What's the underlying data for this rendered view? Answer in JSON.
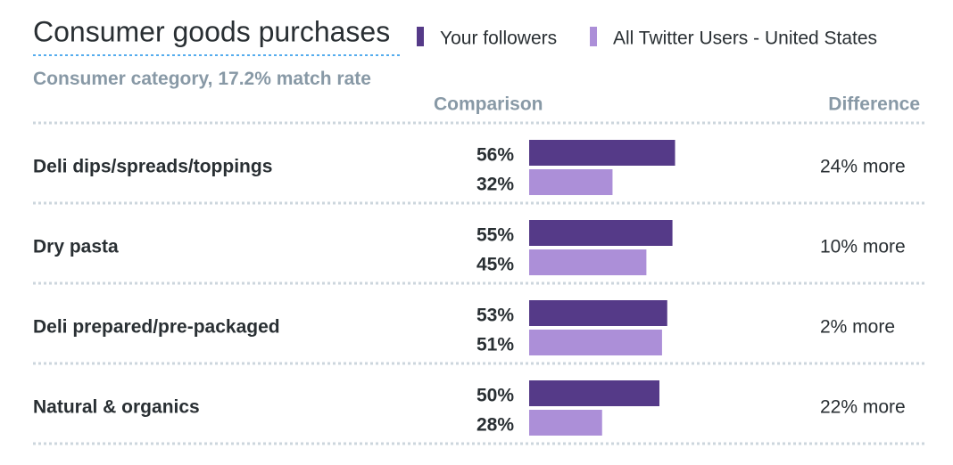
{
  "chart_data": {
    "type": "bar",
    "title": "Consumer goods purchases",
    "subtitle": "Consumer category, 17.2% match rate",
    "comparison_header": "Comparison",
    "difference_header": "Difference",
    "categories": [
      "Deli dips/spreads/toppings",
      "Dry pasta",
      "Deli prepared/pre-packaged",
      "Natural & organics"
    ],
    "differences": [
      "24% more",
      "10% more",
      "2% more",
      "22% more"
    ],
    "xlim": [
      0,
      100
    ],
    "series": [
      {
        "name": "Your followers",
        "color": "#553a88",
        "values": [
          56,
          55,
          53,
          50
        ],
        "value_labels": [
          "56%",
          "55%",
          "53%",
          "50%"
        ]
      },
      {
        "name": "All Twitter Users - United States",
        "color": "#ac8fd8",
        "values": [
          32,
          45,
          51,
          28
        ],
        "value_labels": [
          "32%",
          "45%",
          "51%",
          "28%"
        ]
      }
    ]
  }
}
